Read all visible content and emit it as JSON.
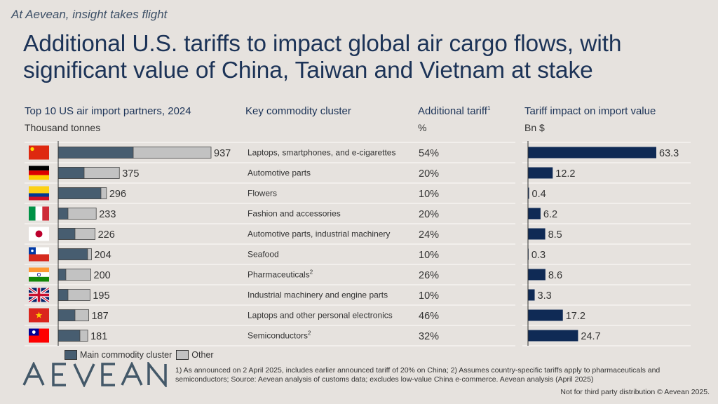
{
  "tagline": "At Aevean, insight takes flight",
  "title": "Additional U.S. tariffs to impact global air cargo flows, with significant value of China, Taiwan and Vietnam at stake",
  "columns": {
    "partners": {
      "title": "Top 10 US air import partners, 2024",
      "subtitle": "Thousand tonnes"
    },
    "commodity": {
      "title": "Key commodity cluster"
    },
    "tariff": {
      "title": "Additional tariff",
      "sup": "1",
      "subtitle": "%"
    },
    "impact": {
      "title": "Tariff impact on import value",
      "subtitle": "Bn $"
    }
  },
  "colors": {
    "background": "#e6e2de",
    "main_cluster": "#475d70",
    "other": "#c2c2c2",
    "impact_bar": "#0f2a55",
    "title": "#1c3357"
  },
  "legend": {
    "main": "Main commodity cluster",
    "other": "Other"
  },
  "chart_data": [
    {
      "type": "bar",
      "orientation": "horizontal",
      "stacked": true,
      "title": "Top 10 US air import partners, 2024",
      "xlabel": "Thousand tonnes",
      "categories": [
        "China",
        "Germany",
        "Colombia",
        "Italy",
        "Japan",
        "Chile",
        "India",
        "United Kingdom",
        "Vietnam",
        "Taiwan"
      ],
      "totals": [
        937,
        375,
        296,
        233,
        226,
        204,
        200,
        195,
        187,
        181
      ],
      "series": [
        {
          "name": "Main commodity cluster",
          "values": [
            460,
            159,
            262,
            60,
            103,
            180,
            47,
            60,
            103,
            133
          ]
        },
        {
          "name": "Other",
          "values": [
            477,
            216,
            34,
            173,
            123,
            24,
            153,
            135,
            84,
            48
          ]
        }
      ],
      "legend": "bottom-left",
      "grid": false
    },
    {
      "type": "table",
      "columns": [
        "Key commodity cluster",
        "Additional tariff (%)"
      ],
      "rows": [
        {
          "commodity": "Laptops, smartphones, and e-cigarettes",
          "sup": "",
          "tariff": "54%"
        },
        {
          "commodity": "Automotive parts",
          "sup": "",
          "tariff": "20%"
        },
        {
          "commodity": "Flowers",
          "sup": "",
          "tariff": "10%"
        },
        {
          "commodity": "Fashion and accessories",
          "sup": "",
          "tariff": "20%"
        },
        {
          "commodity": "Automotive parts, industrial machinery",
          "sup": "",
          "tariff": "24%"
        },
        {
          "commodity": "Seafood",
          "sup": "",
          "tariff": "10%"
        },
        {
          "commodity": "Pharmaceuticals",
          "sup": "2",
          "tariff": "26%"
        },
        {
          "commodity": "Industrial machinery and engine parts",
          "sup": "",
          "tariff": "10%"
        },
        {
          "commodity": "Laptops and other personal electronics",
          "sup": "",
          "tariff": "46%"
        },
        {
          "commodity": "Semiconductors",
          "sup": "2",
          "tariff": "32%"
        }
      ]
    },
    {
      "type": "bar",
      "orientation": "horizontal",
      "title": "Tariff impact on import value",
      "xlabel": "Bn $",
      "categories": [
        "China",
        "Germany",
        "Colombia",
        "Italy",
        "Japan",
        "Chile",
        "India",
        "United Kingdom",
        "Vietnam",
        "Taiwan"
      ],
      "values": [
        63.3,
        12.2,
        0.4,
        6.2,
        8.5,
        0.3,
        8.6,
        3.3,
        17.2,
        24.7
      ],
      "labels": [
        "63.3",
        "12.2",
        "0.4",
        "6.2",
        "8.5",
        "0.3",
        "8.6",
        "3.3",
        "17.2",
        "24.7"
      ],
      "grid": false
    }
  ],
  "flags": [
    "china",
    "germany",
    "colombia",
    "italy",
    "japan",
    "chile",
    "india",
    "uk",
    "vietnam",
    "taiwan"
  ],
  "logo": "AEVEAN",
  "footnote": "1) As announced on 2 April 2025, includes earlier announced tariff of 20% on China; 2) Assumes country-specific tariffs apply to pharmaceuticals and semiconductors; Source: Aevean analysis of customs data; excludes low-value China e-commerce. Aevean analysis (April 2025)",
  "rights": "Not for third party distribution © Aevean 2025."
}
